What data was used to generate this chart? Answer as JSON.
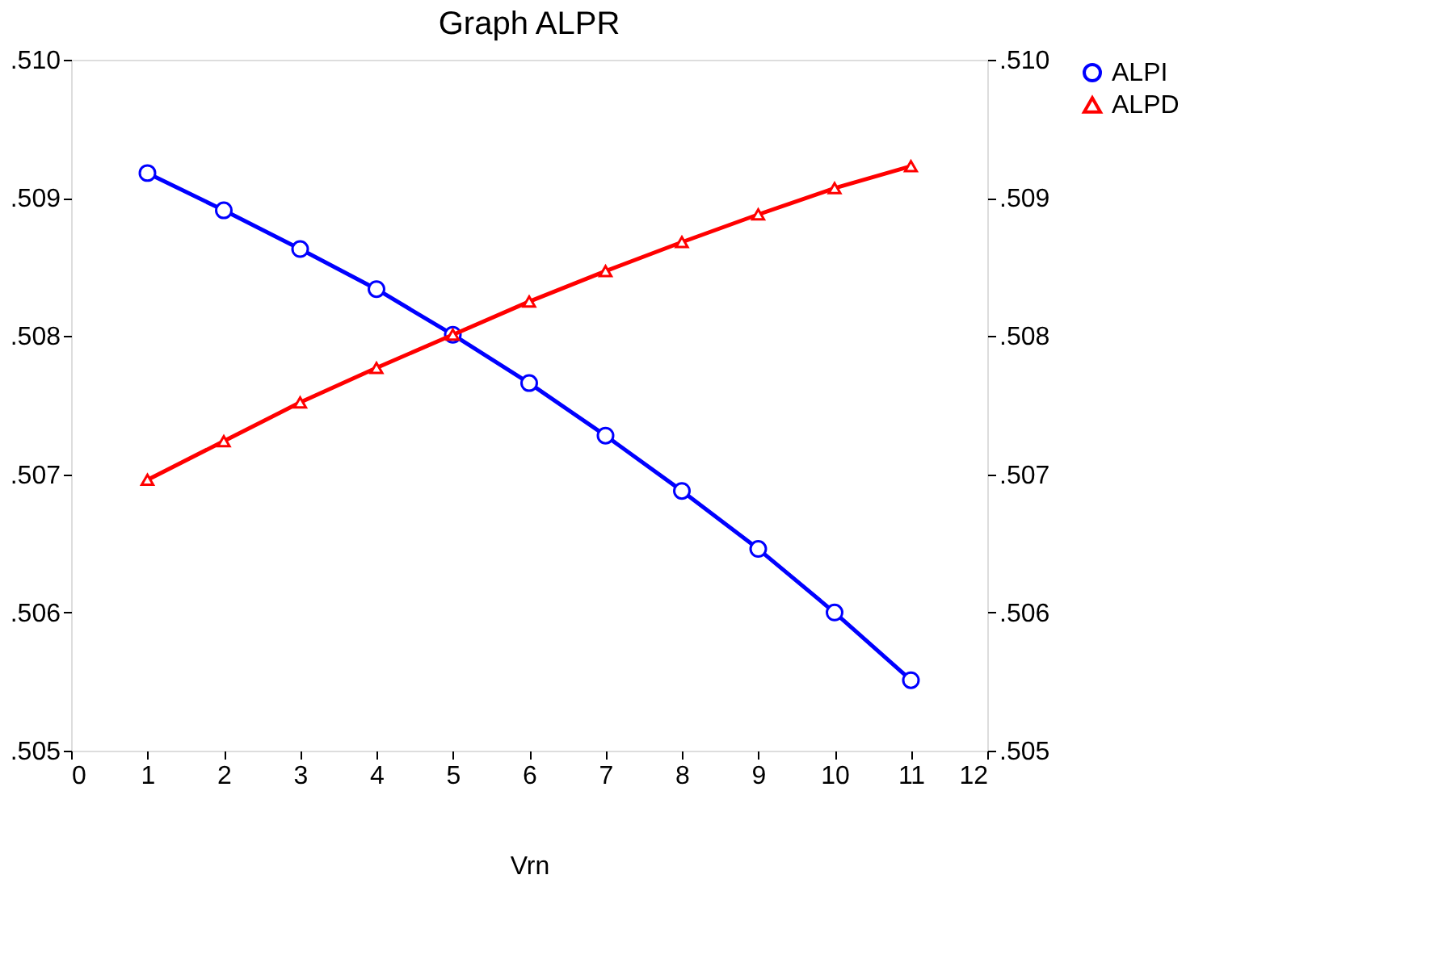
{
  "chart_data": {
    "type": "line",
    "title": "Graph ALPR",
    "xlabel": "Vrn",
    "x": [
      1,
      2,
      3,
      4,
      5,
      6,
      7,
      8,
      9,
      10,
      11
    ],
    "series": [
      {
        "name": "ALPI",
        "color": "#0000ff",
        "marker": "circle",
        "values": [
          0.50918,
          0.50891,
          0.50863,
          0.50834,
          0.50801,
          0.50766,
          0.50728,
          0.50688,
          0.50646,
          0.506,
          0.50551
        ]
      },
      {
        "name": "ALPD",
        "color": "#ff0000",
        "marker": "triangle",
        "values": [
          0.50696,
          0.50724,
          0.50752,
          0.50777,
          0.50801,
          0.50825,
          0.50847,
          0.50868,
          0.50888,
          0.50907,
          0.50923
        ]
      }
    ],
    "xlim": [
      0,
      12
    ],
    "xticks": [
      0,
      1,
      2,
      3,
      4,
      5,
      6,
      7,
      8,
      9,
      10,
      11,
      12
    ],
    "ylim": [
      0.505,
      0.51
    ],
    "yticks": [
      {
        "value": 0.505,
        "label": ".505"
      },
      {
        "value": 0.506,
        "label": ".506"
      },
      {
        "value": 0.507,
        "label": ".507"
      },
      {
        "value": 0.508,
        "label": ".508"
      },
      {
        "value": 0.509,
        "label": ".509"
      },
      {
        "value": 0.51,
        "label": ".510"
      }
    ],
    "y2lim": [
      0.505,
      0.51
    ],
    "y2ticks": [
      {
        "value": 0.505,
        "label": ".505"
      },
      {
        "value": 0.506,
        "label": ".506"
      },
      {
        "value": 0.507,
        "label": ".507"
      },
      {
        "value": 0.508,
        "label": ".508"
      },
      {
        "value": 0.509,
        "label": ".509"
      },
      {
        "value": 0.51,
        "label": ".510"
      }
    ],
    "grid": false,
    "legend": "right",
    "line_style": "solid"
  }
}
